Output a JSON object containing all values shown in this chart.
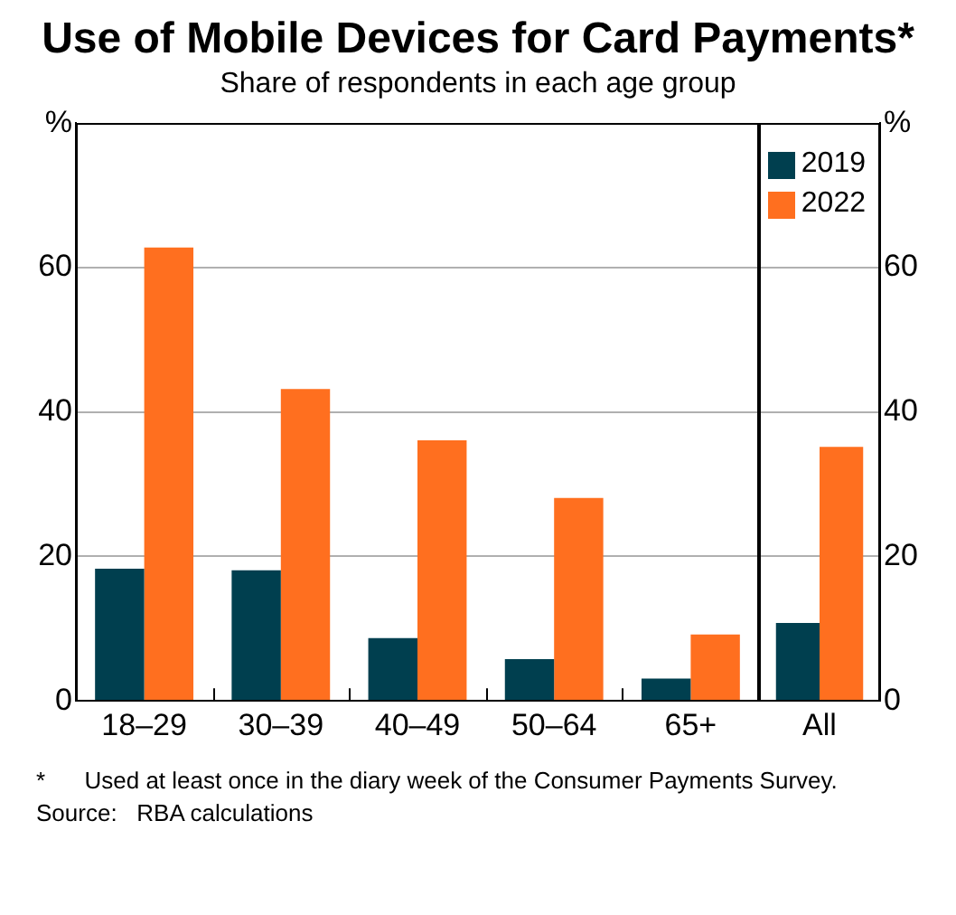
{
  "chart_data": [
    {
      "type": "bar",
      "title": "Use of Mobile Devices for Card Payments*",
      "subtitle": "Share of respondents in each age group",
      "categories": [
        "18–29",
        "30–39",
        "40–49",
        "50–64",
        "65+"
      ],
      "series": [
        {
          "color": "#003f4f",
          "values": [
            18.3,
            18.1,
            8.7,
            5.8,
            3.1
          ]
        },
        {
          "color": "#ff6f1f",
          "values": [
            62.8,
            43.2,
            36.1,
            28.1,
            9.2
          ]
        }
      ],
      "ylim": [
        0,
        80
      ],
      "yticks": [
        0,
        20,
        40,
        60,
        {
          "value": 80,
          "label": "%"
        }
      ],
      "grid": "y",
      "annotations": [
        "*      Used at least once in the diary week of the Consumer Payments Survey.",
        "Source:   RBA calculations"
      ]
    },
    {
      "type": "bar",
      "categories": [
        "All"
      ],
      "series": [
        {
          "name": "2019",
          "color": "#003f4f",
          "values": [
            10.8
          ],
          "axis": "y2"
        },
        {
          "name": "2022",
          "color": "#ff6f1f",
          "values": [
            35.2
          ],
          "axis": "y2"
        }
      ],
      "y2lim": [
        0,
        80
      ],
      "y2ticks": [
        0,
        20,
        40,
        60,
        {
          "value": 80,
          "label": "%"
        }
      ],
      "grid": "y",
      "legend": "top right"
    }
  ]
}
